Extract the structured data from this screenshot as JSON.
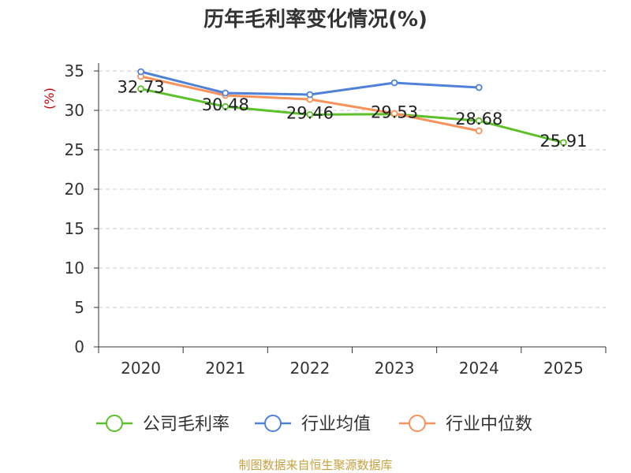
{
  "chart_data": {
    "type": "line",
    "title": "历年毛利率变化情况(%)",
    "ylabel": "(%)",
    "xlabel": "",
    "categories": [
      "2020",
      "2021",
      "2022",
      "2023",
      "2024",
      "2025"
    ],
    "ylim": [
      0,
      35
    ],
    "yticks": [
      0,
      5,
      10,
      15,
      20,
      25,
      30,
      35
    ],
    "grid": true,
    "legend_position": "bottom-center",
    "series": [
      {
        "name": "公司毛利率",
        "color": "#5cc02a",
        "values": [
          32.73,
          30.48,
          29.46,
          29.53,
          28.68,
          25.91
        ],
        "show_labels": true
      },
      {
        "name": "行业均值",
        "color": "#4f81d9",
        "values": [
          34.9,
          32.2,
          32.0,
          33.5,
          32.9,
          null
        ],
        "show_labels": false
      },
      {
        "name": "行业中位数",
        "color": "#f7925b",
        "values": [
          34.3,
          31.9,
          31.4,
          29.6,
          27.4,
          null
        ],
        "show_labels": false
      }
    ],
    "data_labels": [
      "32.73",
      "30.48",
      "29.46",
      "29.53",
      "28.68",
      "25.91"
    ]
  },
  "footer": {
    "source": "制图数据来自恒生聚源数据库"
  },
  "colors": {
    "title": "#333333",
    "axis": "#333333",
    "grid": "#cccccc",
    "ylabel": "#cc0000",
    "source": "#c8a040"
  }
}
